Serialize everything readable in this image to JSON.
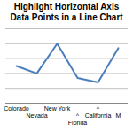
{
  "chart_data": {
    "type": "line",
    "title": "Highlight Horizontal Axis Data Points in a Line Chart",
    "categories": [
      "Colorado",
      "Nevada",
      "New York",
      "^\nFlorida",
      "^\nCalifornia",
      "M"
    ],
    "values": [
      2.5,
      2.0,
      4.0,
      1.7,
      1.4,
      3.7
    ],
    "color": "#4a7ebb",
    "ylim": [
      0,
      5
    ],
    "yticks": [
      0,
      1,
      2,
      3,
      4,
      5
    ],
    "grid": true,
    "tick_labels": "x"
  }
}
